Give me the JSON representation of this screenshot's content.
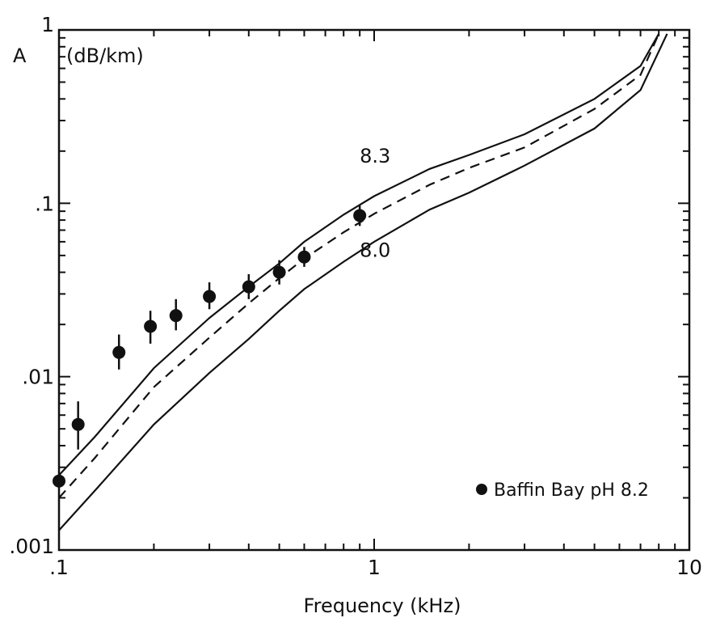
{
  "chart_data": {
    "type": "line",
    "title": "",
    "ylabel_symbol": "A",
    "ylabel_unit": "(dB/km)",
    "xlabel": "Frequency (kHz)",
    "x_scale": "log",
    "y_scale": "log",
    "xlim": [
      0.1,
      10
    ],
    "ylim": [
      0.001,
      1
    ],
    "x_ticks": [
      {
        "value": 0.1,
        "label": ".1"
      },
      {
        "value": 1,
        "label": "1"
      },
      {
        "value": 10,
        "label": "10"
      }
    ],
    "y_ticks": [
      {
        "value": 1,
        "label": "1"
      },
      {
        "value": 0.1,
        "label": ".1"
      },
      {
        "value": 0.01,
        "label": ".01"
      },
      {
        "value": 0.001,
        "label": ".001"
      }
    ],
    "grid": false,
    "series": [
      {
        "name": "8.3",
        "style": "solid",
        "x": [
          0.1,
          0.13,
          0.2,
          0.3,
          0.4,
          0.5,
          0.6,
          0.8,
          1.0,
          1.5,
          2.0,
          3.0,
          5.0,
          7.0,
          8.0
        ],
        "y": [
          0.0027,
          0.0045,
          0.0112,
          0.0218,
          0.033,
          0.045,
          0.06,
          0.086,
          0.11,
          0.158,
          0.19,
          0.25,
          0.4,
          0.62,
          0.95
        ]
      },
      {
        "name": "",
        "style": "dashed",
        "x": [
          0.1,
          0.13,
          0.2,
          0.3,
          0.4,
          0.5,
          0.6,
          0.8,
          1.0,
          1.5,
          2.0,
          3.0,
          5.0,
          7.0,
          8.0
        ],
        "y": [
          0.002,
          0.0034,
          0.0087,
          0.0168,
          0.0265,
          0.037,
          0.048,
          0.068,
          0.087,
          0.128,
          0.16,
          0.21,
          0.35,
          0.55,
          0.95
        ]
      },
      {
        "name": "8.0",
        "style": "solid",
        "x": [
          0.1,
          0.13,
          0.2,
          0.3,
          0.4,
          0.5,
          0.6,
          0.8,
          1.0,
          1.5,
          2.0,
          3.0,
          5.0,
          7.0,
          8.5
        ],
        "y": [
          0.0013,
          0.0022,
          0.0053,
          0.0105,
          0.0165,
          0.024,
          0.032,
          0.046,
          0.06,
          0.092,
          0.115,
          0.165,
          0.27,
          0.45,
          0.95
        ]
      }
    ],
    "points": {
      "name": "Baffin Bay pH 8.2",
      "marker": "filled-circle",
      "data": [
        {
          "x": 0.1,
          "y": 0.0025,
          "err_low": 0.0025,
          "err_high": 0.0025
        },
        {
          "x": 0.115,
          "y": 0.0053,
          "err_low": 0.0038,
          "err_high": 0.0072
        },
        {
          "x": 0.155,
          "y": 0.0138,
          "err_low": 0.011,
          "err_high": 0.0175
        },
        {
          "x": 0.195,
          "y": 0.0195,
          "err_low": 0.0155,
          "err_high": 0.024
        },
        {
          "x": 0.235,
          "y": 0.0225,
          "err_low": 0.0185,
          "err_high": 0.028
        },
        {
          "x": 0.3,
          "y": 0.029,
          "err_low": 0.0245,
          "err_high": 0.035
        },
        {
          "x": 0.4,
          "y": 0.033,
          "err_low": 0.028,
          "err_high": 0.039
        },
        {
          "x": 0.5,
          "y": 0.04,
          "err_low": 0.034,
          "err_high": 0.047
        },
        {
          "x": 0.6,
          "y": 0.049,
          "err_low": 0.043,
          "err_high": 0.056
        },
        {
          "x": 0.9,
          "y": 0.085,
          "err_low": 0.074,
          "err_high": 0.097
        }
      ]
    },
    "colors": {
      "ink": "#111111",
      "background": "#ffffff"
    }
  }
}
